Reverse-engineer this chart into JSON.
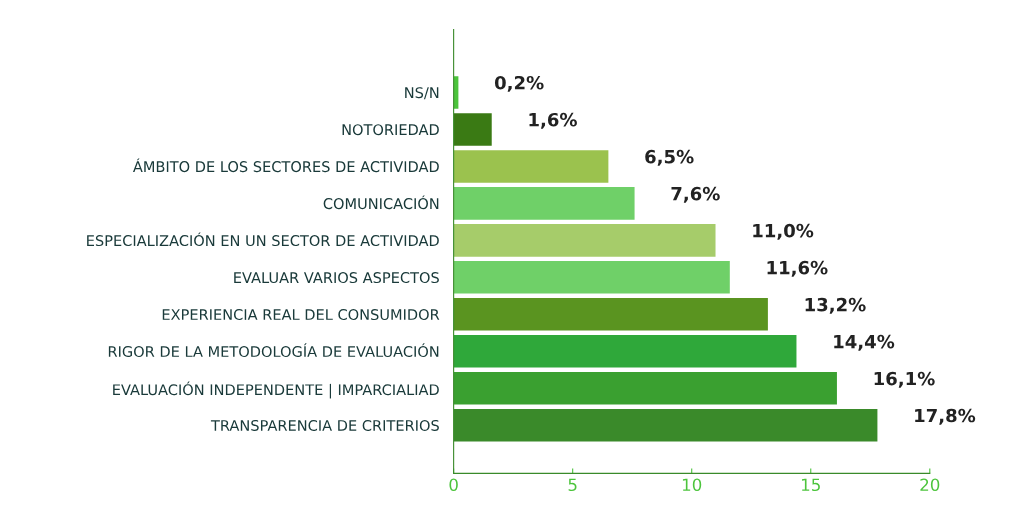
{
  "chart_data": {
    "type": "bar",
    "orientation": "horizontal",
    "categories": [
      "NS/N",
      "NOTORIEDAD",
      "ÁMBITO DE LOS SECTORES DE ACTIVIDAD",
      "COMUNICACIÓN",
      "ESPECIALIZACIÓN EN UN SECTOR DE ACTIVIDAD",
      "EVALUAR VARIOS ASPECTOS",
      "EXPERIENCIA REAL DEL CONSUMIDOR",
      "RIGOR DE LA METODOLOGÍA DE EVALUACIÓN",
      "EVALUACIÓN INDEPENDENTE | IMPARCIALIAD",
      "TRANSPARENCIA DE CRITERIOS"
    ],
    "values": [
      0.2,
      1.6,
      6.5,
      7.6,
      11.0,
      11.6,
      13.2,
      14.4,
      16.1,
      17.8
    ],
    "value_labels": [
      "0,2%",
      "1,6%",
      "6,5%",
      "7,6%",
      "11,0%",
      "11,6%",
      "13,2%",
      "14,4%",
      "16,1%",
      "17,8%"
    ],
    "colors": [
      "#4cc43c",
      "#3a7a14",
      "#9bc24e",
      "#6fd068",
      "#a6cc6a",
      "#6fd068",
      "#5a9420",
      "#2fa83a",
      "#3aa030",
      "#3a8a2a"
    ],
    "xlim": [
      0,
      20
    ],
    "xticks": [
      0,
      5,
      10,
      15,
      20
    ],
    "grid": false
  }
}
